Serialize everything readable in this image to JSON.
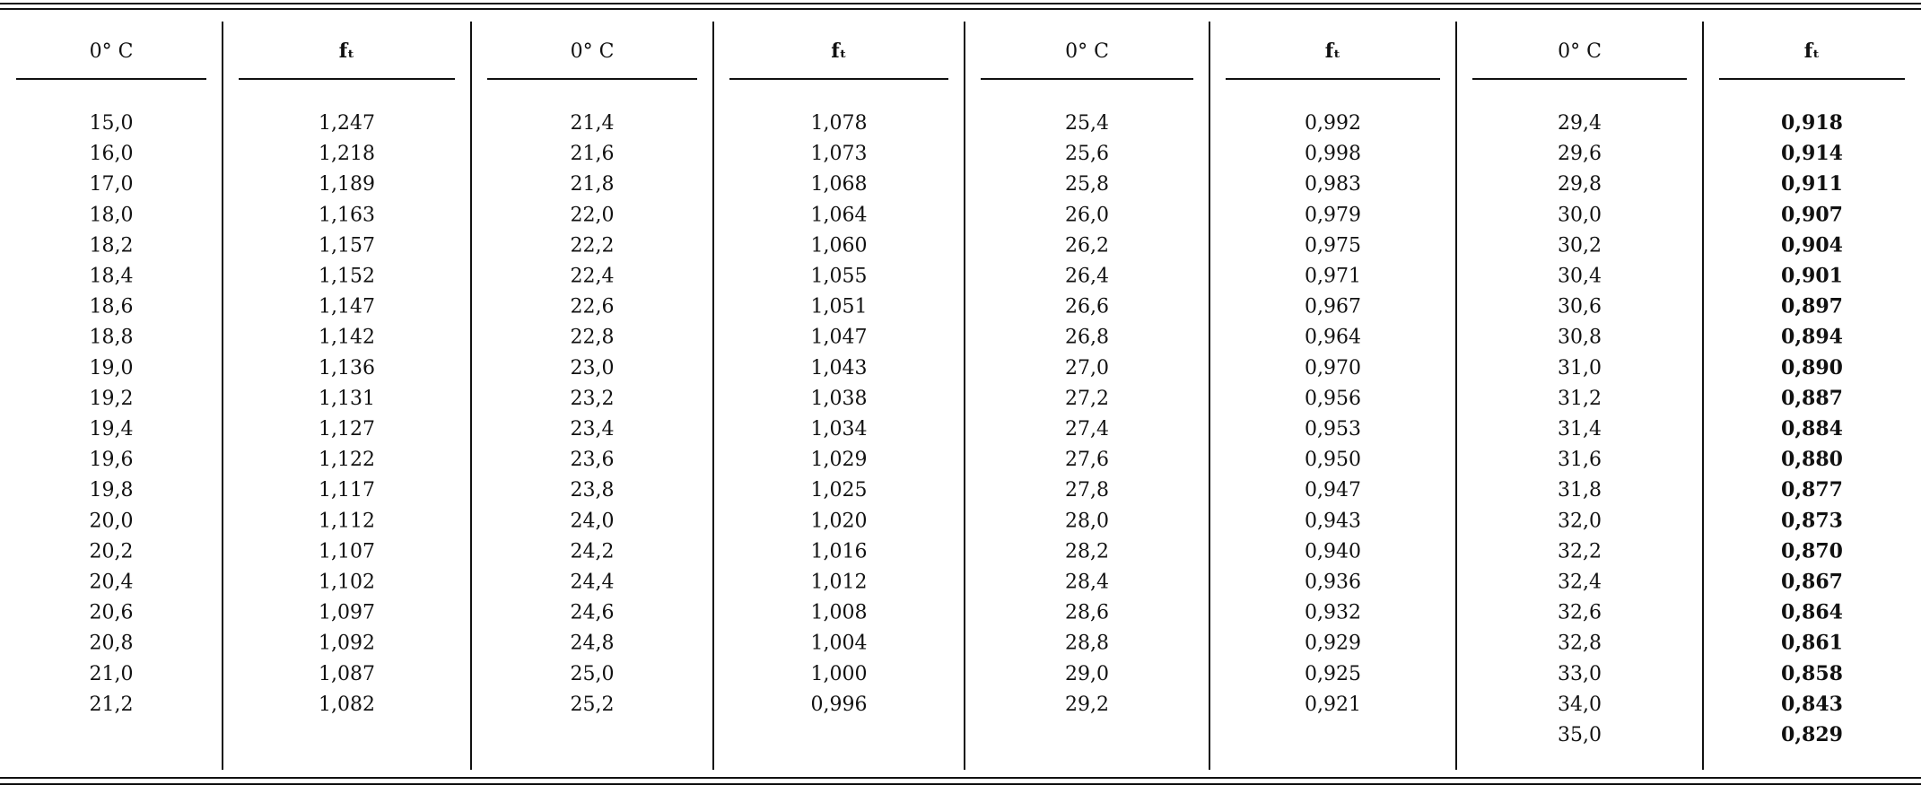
{
  "table": {
    "columns": [
      {
        "header": "0° C",
        "cells": [
          "15,0",
          "16,0",
          "17,0",
          "18,0",
          "18,2",
          "18,4",
          "18,6",
          "18,8",
          "19,0",
          "19,2",
          "19,4",
          "19,6",
          "19,8",
          "20,0",
          "20,2",
          "20,4",
          "20,6",
          "20,8",
          "21,0",
          "21,2"
        ]
      },
      {
        "header": "fₜ",
        "cells": [
          "1,247",
          "1,218",
          "1,189",
          "1,163",
          "1,157",
          "1,152",
          "1,147",
          "1,142",
          "1,136",
          "1,131",
          "1,127",
          "1,122",
          "1,117",
          "1,112",
          "1,107",
          "1,102",
          "1,097",
          "1,092",
          "1,087",
          "1,082"
        ]
      },
      {
        "header": "0° C",
        "cells": [
          "21,4",
          "21,6",
          "21,8",
          "22,0",
          "22,2",
          "22,4",
          "22,6",
          "22,8",
          "23,0",
          "23,2",
          "23,4",
          "23,6",
          "23,8",
          "24,0",
          "24,2",
          "24,4",
          "24,6",
          "24,8",
          "25,0",
          "25,2"
        ]
      },
      {
        "header": "fₜ",
        "cells": [
          "1,078",
          "1,073",
          "1,068",
          "1,064",
          "1,060",
          "1,055",
          "1,051",
          "1,047",
          "1,043",
          "1,038",
          "1,034",
          "1,029",
          "1,025",
          "1,020",
          "1,016",
          "1,012",
          "1,008",
          "1,004",
          "1,000",
          "0,996"
        ]
      },
      {
        "header": "0° C",
        "cells": [
          "25,4",
          "25,6",
          "25,8",
          "26,0",
          "26,2",
          "26,4",
          "26,6",
          "26,8",
          "27,0",
          "27,2",
          "27,4",
          "27,6",
          "27,8",
          "28,0",
          "28,2",
          "28,4",
          "28,6",
          "28,8",
          "29,0",
          "29,2"
        ]
      },
      {
        "header": "fₜ",
        "cells": [
          "0,992",
          "0,998",
          "0,983",
          "0,979",
          "0,975",
          "0,971",
          "0,967",
          "0,964",
          "0,970",
          "0,956",
          "0,953",
          "0,950",
          "0,947",
          "0,943",
          "0,940",
          "0,936",
          "0,932",
          "0,929",
          "0,925",
          "0,921"
        ]
      },
      {
        "header": "0° C",
        "cells": [
          "29,4",
          "29,6",
          "29,8",
          "30,0",
          "30,2",
          "30,4",
          "30,6",
          "30,8",
          "31,0",
          "31,2",
          "31,4",
          "31,6",
          "31,8",
          "32,0",
          "32,2",
          "32,4",
          "32,6",
          "32,8",
          "33,0",
          "34,0",
          "35,0"
        ]
      },
      {
        "header": "fₜ",
        "cells": [
          "0,918",
          "0,914",
          "0,911",
          "0,907",
          "0,904",
          "0,901",
          "0,897",
          "0,894",
          "0,890",
          "0,887",
          "0,884",
          "0,880",
          "0,877",
          "0,873",
          "0,870",
          "0,867",
          "0,864",
          "0,861",
          "0,858",
          "0,843",
          "0,829"
        ]
      }
    ]
  }
}
